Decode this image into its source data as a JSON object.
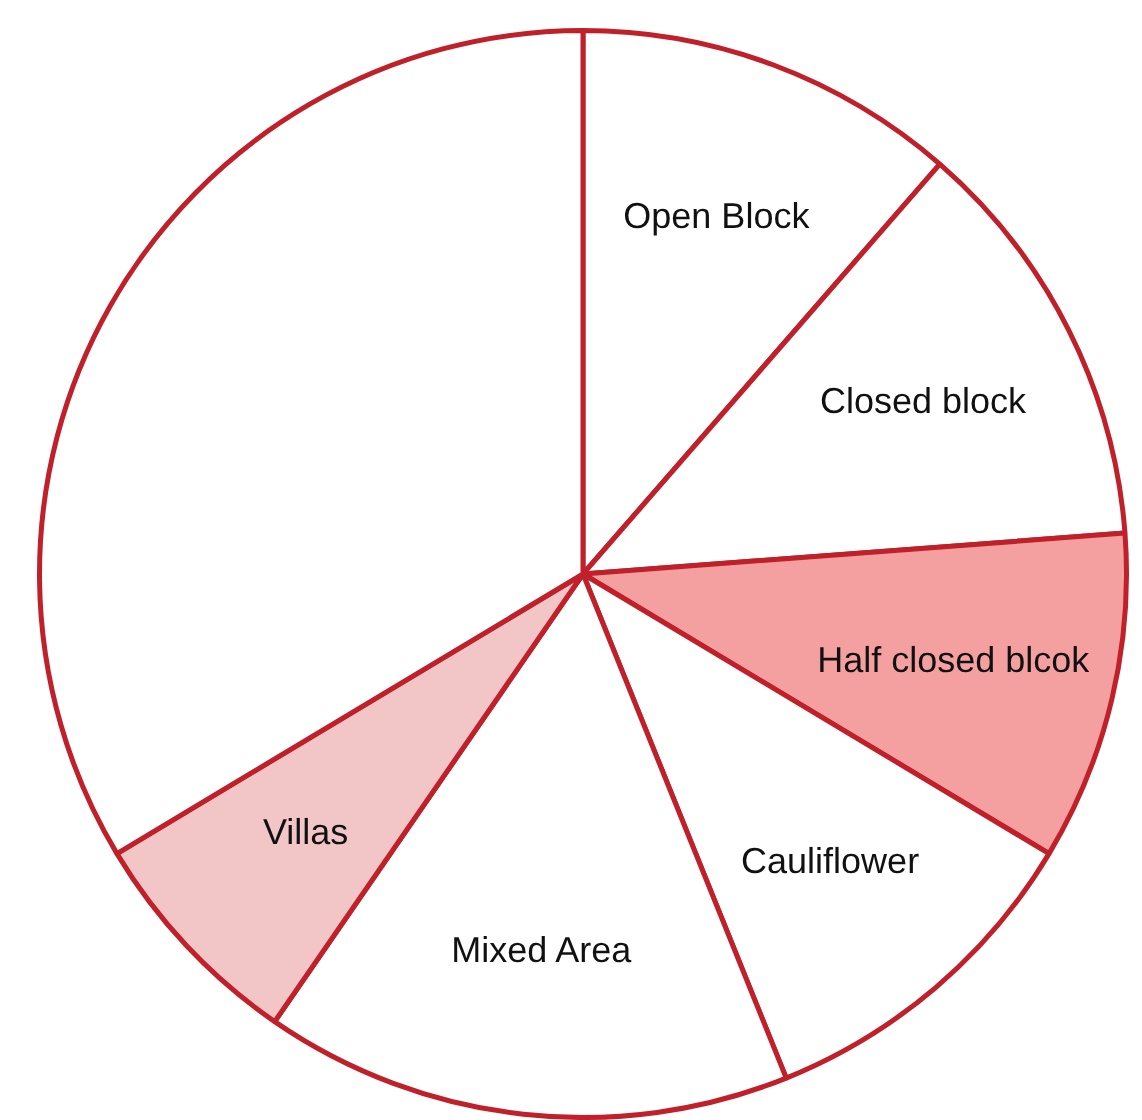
{
  "chart_data": {
    "type": "pie",
    "categories": [
      "Open Block",
      "Closed block",
      "Half closed blcok",
      "Cauliflower",
      "Mixed Area",
      "Villas",
      null
    ],
    "values": [
      11.4,
      12.4,
      9.8,
      10.3,
      15.7,
      6.8,
      33.6
    ],
    "colors": [
      "#ffffff",
      "#ffffff",
      "#f4a0a0",
      "#ffffff",
      "#ffffff",
      "#f2c6c6",
      "#ffffff"
    ],
    "legend": false
  }
}
